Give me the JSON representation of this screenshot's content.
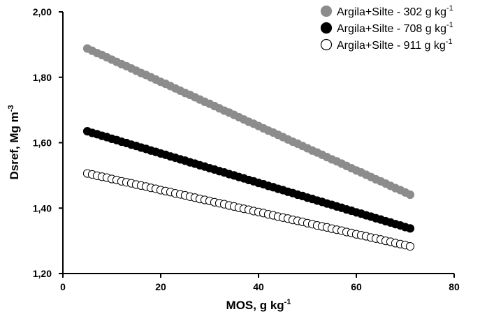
{
  "chart_data": {
    "type": "scatter",
    "xlabel_main": "MOS, g kg",
    "xlabel_sup": "-1",
    "ylabel_main": "Dsref, Mg m",
    "ylabel_sup": "-3",
    "xlim": [
      0,
      80
    ],
    "ylim": [
      1.2,
      2.0
    ],
    "x_ticks": [
      0,
      20,
      40,
      60,
      80
    ],
    "x_tick_labels": [
      "0",
      "20",
      "40",
      "60",
      "80"
    ],
    "y_ticks": [
      1.2,
      1.4,
      1.6,
      1.8,
      2.0
    ],
    "y_tick_labels": [
      "1,20",
      "1,40",
      "1,60",
      "1,80",
      "2,00"
    ],
    "grid": false,
    "legend_position": "top-right",
    "x": [
      5,
      6,
      7,
      8,
      9,
      10,
      11,
      12,
      13,
      14,
      15,
      16,
      17,
      18,
      19,
      20,
      21,
      22,
      23,
      24,
      25,
      26,
      27,
      28,
      29,
      30,
      31,
      32,
      33,
      34,
      35,
      36,
      37,
      38,
      39,
      40,
      41,
      42,
      43,
      44,
      45,
      46,
      47,
      48,
      49,
      50,
      51,
      52,
      53,
      54,
      55,
      56,
      57,
      58,
      59,
      60,
      61,
      62,
      63,
      64,
      65,
      66,
      67,
      68,
      69,
      70,
      71
    ],
    "series": [
      {
        "name": "Argila+Silte - 302 g kg",
        "name_sup": "-1",
        "fill": "#8c8c8c",
        "stroke": "#8c8c8c",
        "values": [
          1.888,
          1.881,
          1.874,
          1.868,
          1.861,
          1.854,
          1.847,
          1.84,
          1.834,
          1.827,
          1.82,
          1.813,
          1.807,
          1.8,
          1.793,
          1.786,
          1.78,
          1.773,
          1.766,
          1.759,
          1.752,
          1.746,
          1.739,
          1.732,
          1.725,
          1.719,
          1.712,
          1.705,
          1.698,
          1.692,
          1.685,
          1.678,
          1.671,
          1.664,
          1.658,
          1.651,
          1.644,
          1.637,
          1.631,
          1.624,
          1.617,
          1.61,
          1.603,
          1.597,
          1.59,
          1.583,
          1.576,
          1.57,
          1.563,
          1.556,
          1.549,
          1.543,
          1.536,
          1.529,
          1.522,
          1.515,
          1.509,
          1.502,
          1.495,
          1.488,
          1.482,
          1.475,
          1.468,
          1.461,
          1.455,
          1.448,
          1.441
        ]
      },
      {
        "name": "Argila+Silte - 708 g kg",
        "name_sup": "-1",
        "fill": "#000000",
        "stroke": "#000000",
        "values": [
          1.635,
          1.63,
          1.626,
          1.621,
          1.617,
          1.612,
          1.608,
          1.603,
          1.599,
          1.594,
          1.59,
          1.585,
          1.581,
          1.576,
          1.572,
          1.567,
          1.563,
          1.558,
          1.554,
          1.549,
          1.545,
          1.54,
          1.536,
          1.531,
          1.527,
          1.522,
          1.518,
          1.513,
          1.509,
          1.504,
          1.5,
          1.495,
          1.491,
          1.486,
          1.482,
          1.477,
          1.473,
          1.468,
          1.464,
          1.459,
          1.455,
          1.45,
          1.446,
          1.441,
          1.437,
          1.432,
          1.428,
          1.423,
          1.419,
          1.414,
          1.41,
          1.405,
          1.401,
          1.396,
          1.392,
          1.387,
          1.383,
          1.378,
          1.374,
          1.369,
          1.365,
          1.36,
          1.356,
          1.351,
          1.347,
          1.342,
          1.338
        ]
      },
      {
        "name": "Argila+Silte - 911 g kg",
        "name_sup": "-1",
        "fill": "#ffffff",
        "stroke": "#000000",
        "values": [
          1.506,
          1.503,
          1.499,
          1.496,
          1.493,
          1.489,
          1.486,
          1.482,
          1.479,
          1.476,
          1.472,
          1.469,
          1.466,
          1.462,
          1.459,
          1.455,
          1.452,
          1.449,
          1.445,
          1.442,
          1.439,
          1.435,
          1.432,
          1.428,
          1.425,
          1.422,
          1.418,
          1.415,
          1.412,
          1.408,
          1.405,
          1.401,
          1.398,
          1.395,
          1.391,
          1.388,
          1.385,
          1.381,
          1.378,
          1.374,
          1.371,
          1.368,
          1.364,
          1.361,
          1.358,
          1.354,
          1.351,
          1.347,
          1.344,
          1.341,
          1.337,
          1.334,
          1.331,
          1.327,
          1.324,
          1.32,
          1.317,
          1.314,
          1.31,
          1.307,
          1.304,
          1.3,
          1.297,
          1.293,
          1.29,
          1.287,
          1.283
        ]
      }
    ]
  }
}
